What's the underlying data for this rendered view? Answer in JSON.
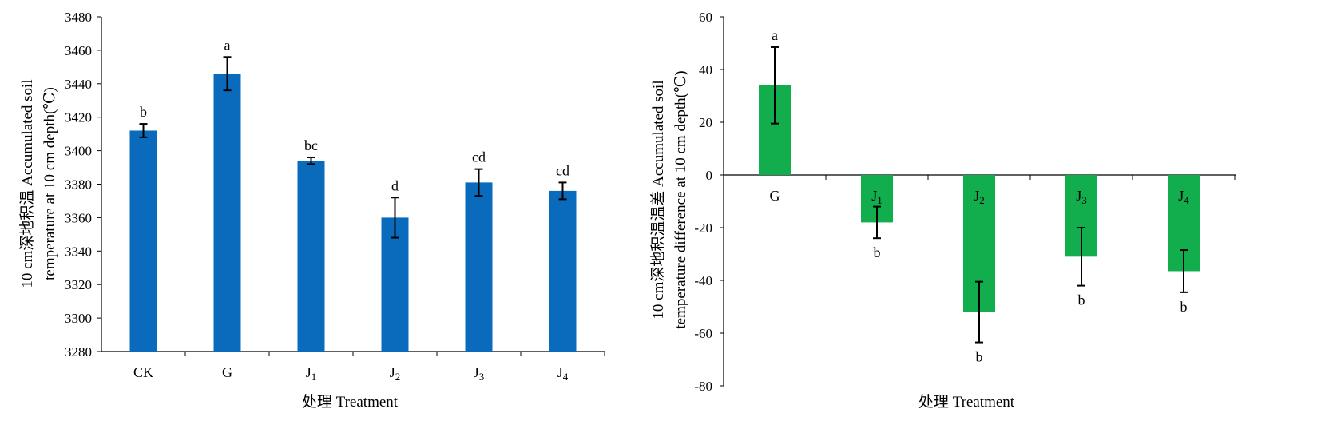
{
  "colors": {
    "left_bar": "#0a6bbd",
    "right_bar": "#12ad4c",
    "axis": "#000000"
  },
  "chart_data": [
    {
      "type": "bar",
      "title": "",
      "categories": [
        {
          "base": "CK",
          "sub": ""
        },
        {
          "base": "G",
          "sub": ""
        },
        {
          "base": "J",
          "sub": "1"
        },
        {
          "base": "J",
          "sub": "2"
        },
        {
          "base": "J",
          "sub": "3"
        },
        {
          "base": "J",
          "sub": "4"
        }
      ],
      "values": [
        3412,
        3446,
        3394,
        3360,
        3381,
        3376
      ],
      "errors": [
        4,
        10,
        2,
        12,
        8,
        5
      ],
      "labels": [
        "b",
        "a",
        "bc",
        "d",
        "cd",
        "cd"
      ],
      "ylim": [
        3280,
        3480
      ],
      "yticks": [
        3280,
        3300,
        3320,
        3340,
        3360,
        3380,
        3400,
        3420,
        3440,
        3460,
        3480
      ],
      "xlabel": "处理 Treatment",
      "ylabel_lines": [
        "10 cm深地积温 Accumulated soil",
        "temperature at 10 cm depth(℃)"
      ]
    },
    {
      "type": "bar",
      "title": "",
      "categories": [
        {
          "base": "G",
          "sub": ""
        },
        {
          "base": "J",
          "sub": "1"
        },
        {
          "base": "J",
          "sub": "2"
        },
        {
          "base": "J",
          "sub": "3"
        },
        {
          "base": "J",
          "sub": "4"
        }
      ],
      "values": [
        34,
        -18,
        -52,
        -31,
        -36.5
      ],
      "errors": [
        14.5,
        6,
        11.5,
        11,
        8
      ],
      "labels": [
        "a",
        "b",
        "b",
        "b",
        "b"
      ],
      "ylim": [
        -80,
        60
      ],
      "yticks": [
        -80,
        -60,
        -40,
        -20,
        0,
        20,
        40,
        60
      ],
      "xlabel": "处理 Treatment",
      "ylabel_lines": [
        "10 cm深地积温温差 Accumulated soil",
        "temperature difference at 10 cm depth(℃)"
      ]
    }
  ]
}
